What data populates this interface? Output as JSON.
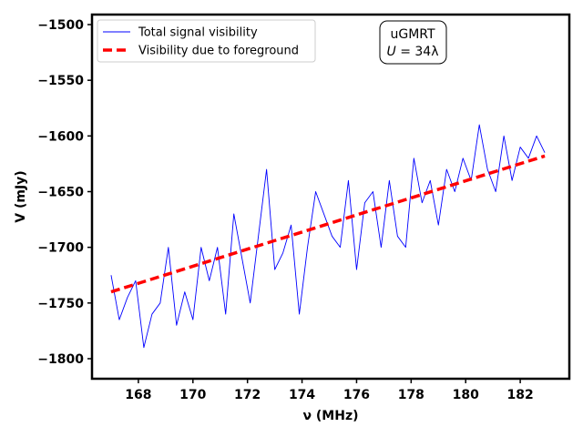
{
  "chart_data": {
    "type": "line",
    "xlabel": "ν (MHz)",
    "ylabel": "V (mJy)",
    "xlim": [
      166.3,
      183.8
    ],
    "ylim": [
      -1818,
      -1491
    ],
    "xticks": [
      168,
      170,
      172,
      174,
      176,
      178,
      180,
      182
    ],
    "yticks": [
      -1800,
      -1750,
      -1700,
      -1650,
      -1600,
      -1550,
      -1500
    ],
    "xtick_labels": [
      "168",
      "170",
      "172",
      "174",
      "176",
      "178",
      "180",
      "182"
    ],
    "ytick_labels": [
      "−1800",
      "−1750",
      "−1700",
      "−1650",
      "−1600",
      "−1550",
      "−1500"
    ],
    "legend": {
      "location": "upper left",
      "entries": [
        "Total signal visibility",
        "Visibility due to foreground"
      ]
    },
    "annotation": {
      "line1": "uGMRT",
      "line2_symbol": "U",
      "line2_value": " = 34λ"
    },
    "series": [
      {
        "name": "Total signal visibility",
        "color": "#0000ff",
        "style": "solid",
        "x": [
          167.0,
          167.3,
          167.6,
          167.9,
          168.2,
          168.5,
          168.8,
          169.1,
          169.4,
          169.7,
          170.0,
          170.3,
          170.6,
          170.9,
          171.2,
          171.5,
          171.8,
          172.1,
          172.4,
          172.7,
          173.0,
          173.3,
          173.6,
          173.9,
          174.2,
          174.5,
          174.8,
          175.1,
          175.4,
          175.7,
          176.0,
          176.3,
          176.6,
          176.9,
          177.2,
          177.5,
          177.8,
          178.1,
          178.4,
          178.7,
          179.0,
          179.3,
          179.6,
          179.9,
          180.2,
          180.5,
          180.8,
          181.1,
          181.4,
          181.7,
          182.0,
          182.3,
          182.6,
          182.9
        ],
        "y": [
          -1725,
          -1765,
          -1745,
          -1730,
          -1790,
          -1760,
          -1750,
          -1700,
          -1770,
          -1740,
          -1765,
          -1700,
          -1730,
          -1700,
          -1760,
          -1670,
          -1710,
          -1750,
          -1690,
          -1630,
          -1720,
          -1705,
          -1680,
          -1760,
          -1700,
          -1650,
          -1670,
          -1690,
          -1700,
          -1640,
          -1720,
          -1660,
          -1650,
          -1700,
          -1640,
          -1690,
          -1700,
          -1620,
          -1660,
          -1640,
          -1680,
          -1630,
          -1650,
          -1620,
          -1640,
          -1590,
          -1630,
          -1650,
          -1600,
          -1640,
          -1610,
          -1620,
          -1600,
          -1615
        ]
      },
      {
        "name": "Visibility due to foreground",
        "color": "#ff0000",
        "style": "dashed",
        "x": [
          167.0,
          182.9
        ],
        "y": [
          -1740,
          -1618
        ]
      }
    ]
  }
}
